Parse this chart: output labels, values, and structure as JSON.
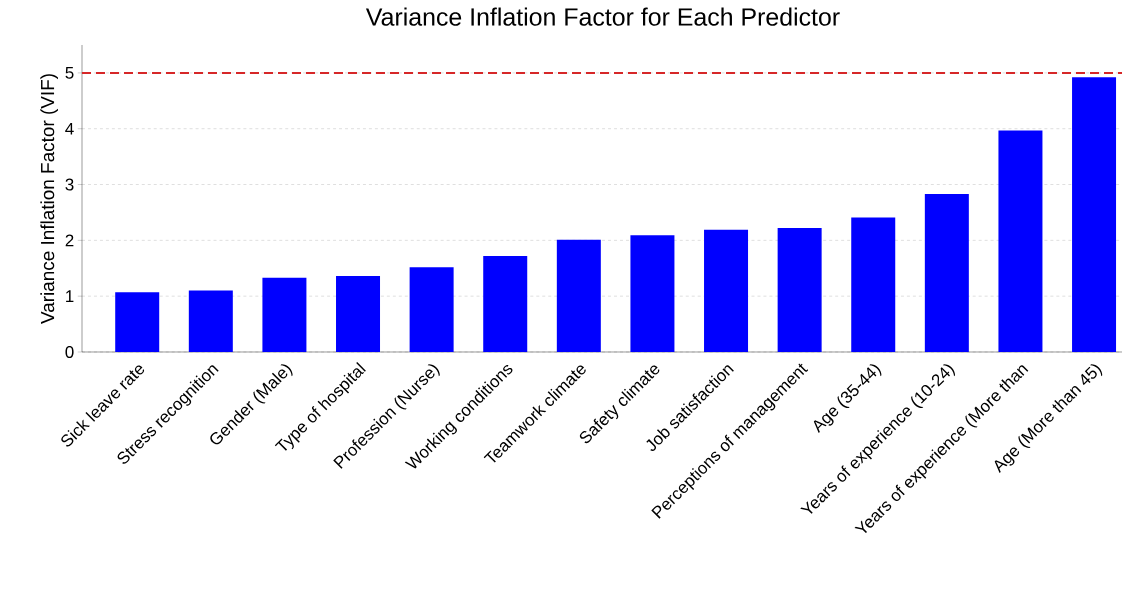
{
  "chart_data": {
    "type": "bar",
    "title": "Variance Inflation Factor for Each Predictor",
    "ylabel": "Variance Inflation Factor (VIF)",
    "categories": [
      "Sick leave rate",
      "Stress recognition",
      "Gender (Male)",
      "Type of hospital",
      "Profession (Nurse)",
      "Working conditions",
      "Teamwork climate",
      "Safety climate",
      "Job satisfaction",
      "Perceptions of management",
      "Age (35-44)",
      "Years of experience (10-24)",
      "Years of experience (More than",
      "Age (More than 45)"
    ],
    "values": [
      1.07,
      1.1,
      1.33,
      1.36,
      1.52,
      1.72,
      2.01,
      2.09,
      2.19,
      2.22,
      2.41,
      2.83,
      3.97,
      4.92
    ],
    "color": "#0000ff",
    "ylim": [
      0,
      5.5
    ],
    "yticks": [
      0,
      1,
      2,
      3,
      4,
      5
    ],
    "grid": "y",
    "ref_lines": [
      {
        "axis": "y",
        "value": 5,
        "color": "#d62728",
        "line_style": "dashed"
      }
    ]
  }
}
